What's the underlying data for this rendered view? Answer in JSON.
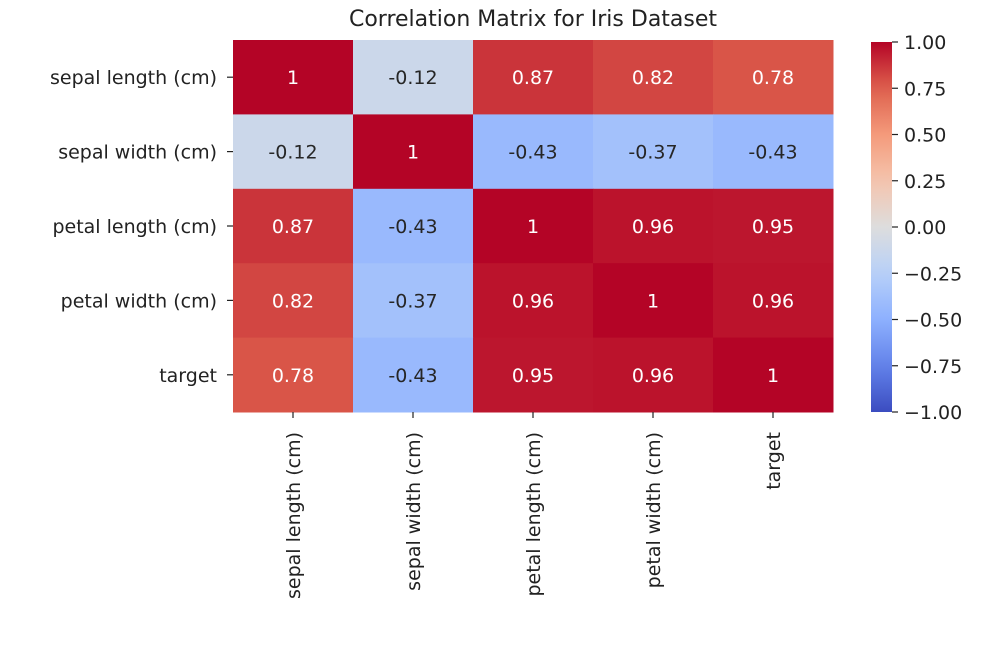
{
  "chart_data": {
    "type": "heatmap",
    "title": "Correlation Matrix for Iris Dataset",
    "xlabel": "",
    "ylabel": "",
    "row_labels": [
      "sepal length (cm)",
      "sepal width (cm)",
      "petal length (cm)",
      "petal width (cm)",
      "target"
    ],
    "col_labels": [
      "sepal length (cm)",
      "sepal width (cm)",
      "petal length (cm)",
      "petal width (cm)",
      "target"
    ],
    "values": [
      [
        1,
        -0.12,
        0.87,
        0.82,
        0.78
      ],
      [
        -0.12,
        1,
        -0.43,
        -0.37,
        -0.43
      ],
      [
        0.87,
        -0.43,
        1,
        0.96,
        0.95
      ],
      [
        0.82,
        -0.37,
        0.96,
        1,
        0.96
      ],
      [
        0.78,
        -0.43,
        0.95,
        0.96,
        1
      ]
    ],
    "annotations": [
      [
        "1",
        "-0.12",
        "0.87",
        "0.82",
        "0.78"
      ],
      [
        "-0.12",
        "1",
        "-0.43",
        "-0.37",
        "-0.43"
      ],
      [
        "0.87",
        "-0.43",
        "1",
        "0.96",
        "0.95"
      ],
      [
        "0.82",
        "-0.37",
        "0.96",
        "1",
        "0.96"
      ],
      [
        "0.78",
        "-0.43",
        "0.95",
        "0.96",
        "1"
      ]
    ],
    "colormap": "coolwarm",
    "vmin": -1.0,
    "vmax": 1.0,
    "colorbar": {
      "placement": "right",
      "ticks": [
        1.0,
        0.75,
        0.5,
        0.25,
        0.0,
        -0.25,
        -0.5,
        -0.75,
        -1.0
      ],
      "tick_labels": [
        "1.00",
        "0.75",
        "0.50",
        "0.25",
        "0.00",
        "−0.25",
        "−0.50",
        "−0.75",
        "−1.00"
      ]
    },
    "grid": false,
    "x_tick_rotation": "vertical"
  }
}
